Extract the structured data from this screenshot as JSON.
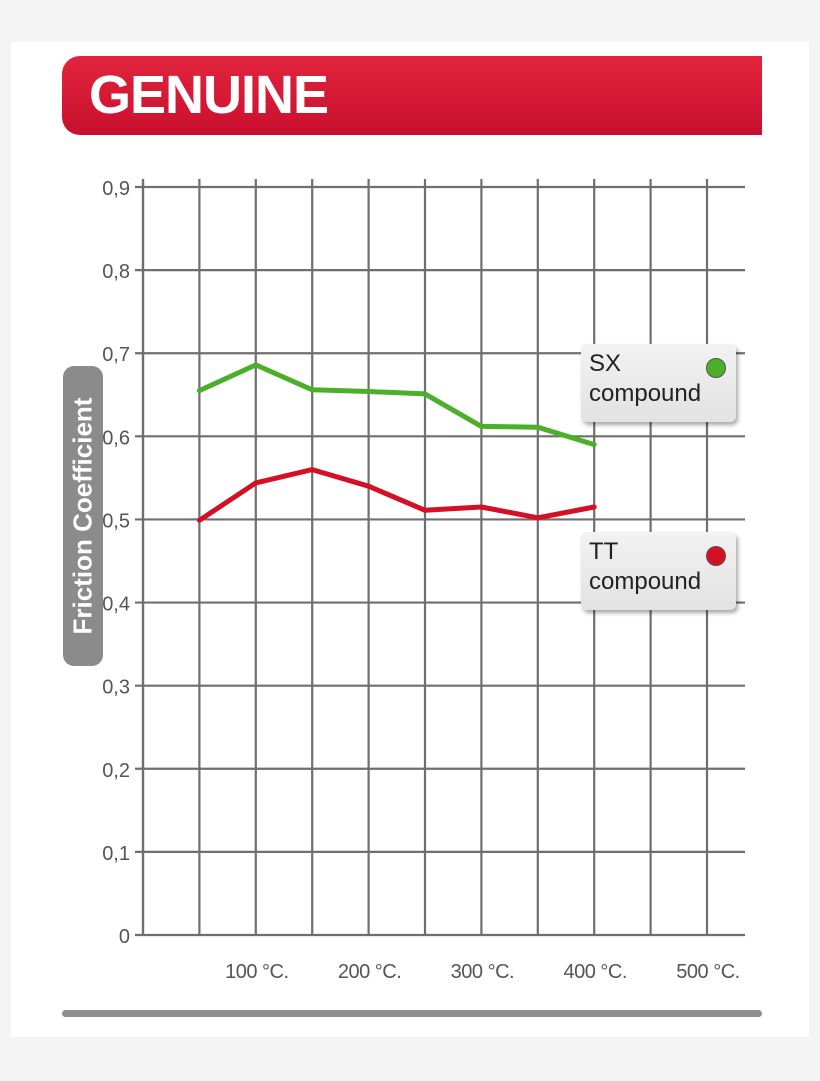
{
  "banner": {
    "title": "GENUINE"
  },
  "colors": {
    "banner": "#c8102e",
    "grid": "#6f6f6f",
    "sx": "#4caf2a",
    "tt": "#d51024",
    "label_pill": "#8b8b8b"
  },
  "legend": {
    "sx": {
      "name": "SX",
      "sub": "compound",
      "color": "#4caf2a"
    },
    "tt": {
      "name": "TT",
      "sub": "compound",
      "color": "#d51024"
    }
  },
  "chart_data": {
    "type": "line",
    "title": "GENUINE",
    "xlabel": "",
    "ylabel": "Friction Coefficient",
    "xlim": [
      0,
      500
    ],
    "ylim": [
      0,
      0.9
    ],
    "grid": true,
    "legend_position": "right",
    "x_ticks": [
      100,
      200,
      300,
      400,
      500
    ],
    "x_tick_labels": [
      "100 °C.",
      "200 °C.",
      "300 °C.",
      "400 °C.",
      "500 °C."
    ],
    "y_ticks": [
      0,
      0.1,
      0.2,
      0.3,
      0.4,
      0.5,
      0.6,
      0.7,
      0.8,
      0.9
    ],
    "y_tick_labels": [
      "0",
      "0,1",
      "0,2",
      "0,3",
      "0,4",
      "0,5",
      "0,6",
      "0,7",
      "0,8",
      "0,9"
    ],
    "series": [
      {
        "name": "SX compound",
        "color": "#4caf2a",
        "x": [
          50,
          100,
          150,
          200,
          250,
          300,
          350,
          400
        ],
        "y": [
          0.655,
          0.686,
          0.656,
          0.654,
          0.651,
          0.612,
          0.611,
          0.59
        ]
      },
      {
        "name": "TT compound",
        "color": "#d51024",
        "x": [
          50,
          100,
          150,
          200,
          250,
          300,
          350,
          400
        ],
        "y": [
          0.499,
          0.544,
          0.56,
          0.54,
          0.511,
          0.515,
          0.502,
          0.515
        ]
      }
    ]
  }
}
